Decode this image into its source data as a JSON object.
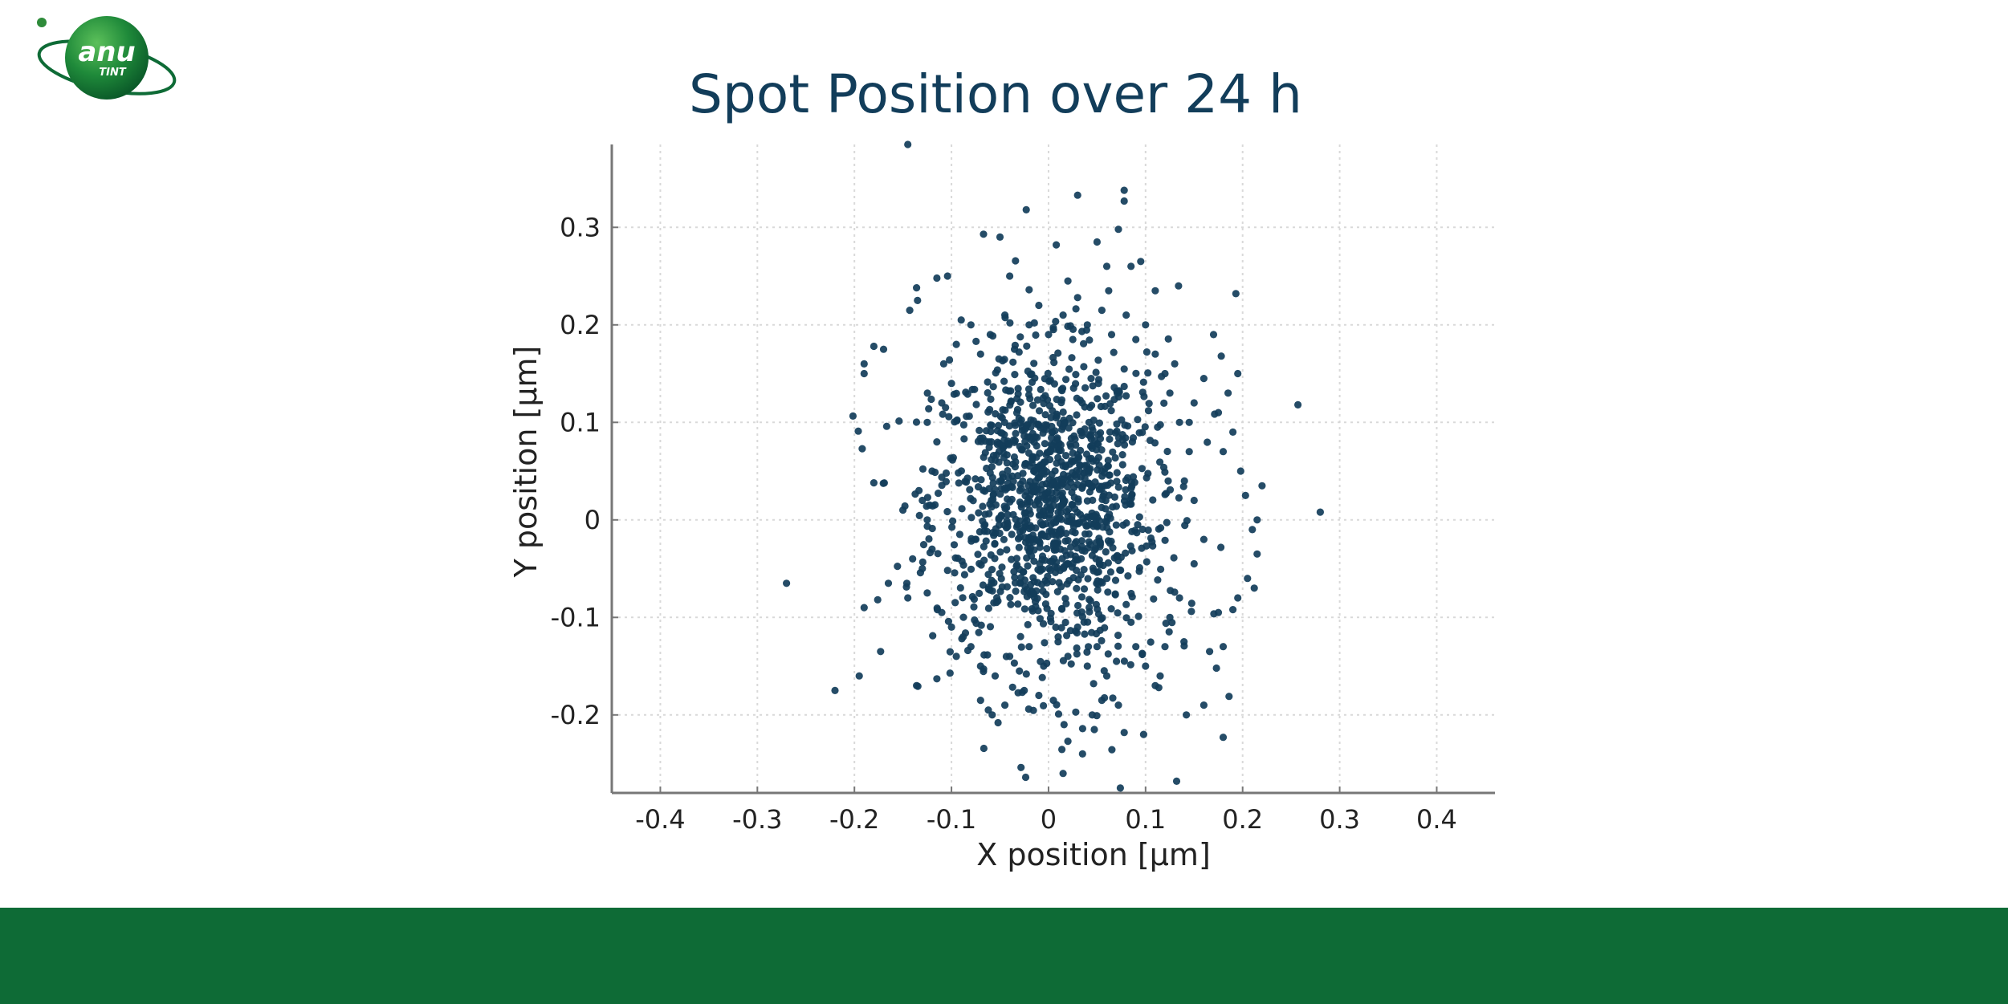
{
  "logo": {
    "line1": "anu",
    "line2": "TINT",
    "colors": {
      "sphere": "#1f8a3a",
      "orbit": "#0e6b36",
      "text": "#ffffff"
    }
  },
  "chart_data": {
    "type": "scatter",
    "title": "Spot Position over 24 h",
    "xlabel": "X position [μm]",
    "ylabel": "Y position [μm]",
    "xlim": [
      -0.45,
      0.46
    ],
    "ylim": [
      -0.28,
      0.385
    ],
    "xticks": [
      -0.4,
      -0.3,
      -0.2,
      -0.1,
      0,
      0.1,
      0.2,
      0.3,
      0.4
    ],
    "xtick_labels": [
      "-0.4",
      "-0.3",
      "-0.2",
      "-0.1",
      "0",
      "0.1",
      "0.2",
      "0.3",
      "0.4"
    ],
    "yticks": [
      -0.2,
      -0.1,
      0,
      0.1,
      0.2,
      0.3
    ],
    "ytick_labels": [
      "-0.2",
      "-0.1",
      "0",
      "0.1",
      "0.2",
      "0.3"
    ],
    "grid": true,
    "legend": "none",
    "colors": {
      "marker": "#123d5a",
      "title": "#123d5a",
      "axis": "#777777",
      "grid": "#d9d9d9"
    },
    "points": [
      [
        -0.145,
        0.385
      ],
      [
        -0.27,
        -0.065
      ],
      [
        -0.22,
        -0.175
      ],
      [
        0.28,
        0.008
      ],
      [
        0.257,
        0.118
      ],
      [
        0.03,
        0.333
      ],
      [
        0.078,
        0.338
      ],
      [
        0.078,
        0.327
      ],
      [
        -0.023,
        0.318
      ],
      [
        0.072,
        0.298
      ],
      [
        -0.05,
        0.29
      ],
      [
        -0.067,
        0.293
      ],
      [
        0.008,
        0.282
      ],
      [
        0.05,
        0.285
      ],
      [
        -0.104,
        0.25
      ],
      [
        -0.115,
        0.248
      ],
      [
        0.11,
        0.235
      ],
      [
        0.134,
        0.24
      ],
      [
        0.193,
        0.232
      ],
      [
        -0.136,
        0.238
      ],
      [
        -0.135,
        0.225
      ],
      [
        -0.143,
        0.215
      ],
      [
        -0.02,
        0.236
      ],
      [
        0.03,
        0.228
      ],
      [
        -0.19,
        0.15
      ],
      [
        -0.19,
        0.16
      ],
      [
        -0.17,
        0.175
      ],
      [
        -0.18,
        0.178
      ],
      [
        -0.196,
        0.091
      ],
      [
        -0.192,
        0.073
      ],
      [
        -0.18,
        0.038
      ],
      [
        -0.19,
        -0.09
      ],
      [
        -0.195,
        -0.16
      ],
      [
        -0.173,
        -0.135
      ],
      [
        -0.176,
        -0.082
      ],
      [
        -0.165,
        -0.065
      ],
      [
        -0.14,
        -0.04
      ],
      [
        -0.15,
        0.01
      ],
      [
        -0.146,
        -0.065
      ],
      [
        -0.145,
        -0.08
      ],
      [
        -0.136,
        -0.17
      ],
      [
        -0.115,
        -0.163
      ],
      [
        -0.088,
        -0.12
      ],
      [
        -0.07,
        -0.185
      ],
      [
        -0.062,
        -0.195
      ],
      [
        -0.058,
        -0.2
      ],
      [
        -0.052,
        -0.208
      ],
      [
        -0.045,
        -0.19
      ],
      [
        -0.025,
        -0.175
      ],
      [
        -0.01,
        -0.18
      ],
      [
        0.005,
        -0.185
      ],
      [
        0.016,
        -0.21
      ],
      [
        0.02,
        -0.227
      ],
      [
        0.015,
        -0.26
      ],
      [
        0.035,
        -0.24
      ],
      [
        0.045,
        -0.2
      ],
      [
        0.055,
        -0.185
      ],
      [
        0.072,
        -0.19
      ],
      [
        0.078,
        -0.218
      ],
      [
        0.098,
        -0.22
      ],
      [
        0.074,
        -0.275
      ],
      [
        0.132,
        -0.268
      ],
      [
        0.142,
        -0.2
      ],
      [
        0.16,
        -0.19
      ],
      [
        0.18,
        -0.223
      ],
      [
        0.186,
        -0.181
      ],
      [
        0.173,
        -0.152
      ],
      [
        0.166,
        -0.135
      ],
      [
        0.18,
        -0.13
      ],
      [
        0.175,
        -0.095
      ],
      [
        0.19,
        -0.092
      ],
      [
        0.195,
        -0.08
      ],
      [
        0.205,
        -0.06
      ],
      [
        0.212,
        -0.07
      ],
      [
        0.215,
        -0.035
      ],
      [
        0.21,
        -0.01
      ],
      [
        0.215,
        0.0
      ],
      [
        0.203,
        0.025
      ],
      [
        0.22,
        0.035
      ],
      [
        0.198,
        0.05
      ],
      [
        0.18,
        0.07
      ],
      [
        0.19,
        0.09
      ],
      [
        0.175,
        0.11
      ],
      [
        0.185,
        0.13
      ],
      [
        0.195,
        0.15
      ],
      [
        0.178,
        0.168
      ],
      [
        0.17,
        0.19
      ],
      [
        0.16,
        0.145
      ],
      [
        0.15,
        0.12
      ],
      [
        0.145,
        0.1
      ],
      [
        0.145,
        0.07
      ],
      [
        0.14,
        0.04
      ],
      [
        0.15,
        0.02
      ],
      [
        0.16,
        -0.02
      ],
      [
        0.15,
        -0.045
      ],
      [
        0.135,
        -0.08
      ],
      [
        0.125,
        -0.1
      ],
      [
        0.12,
        -0.13
      ],
      [
        0.115,
        -0.16
      ],
      [
        0.11,
        -0.17
      ],
      [
        0.1,
        -0.15
      ],
      [
        0.09,
        -0.13
      ],
      [
        0.085,
        -0.105
      ],
      [
        0.07,
        -0.145
      ],
      [
        0.06,
        -0.16
      ],
      [
        0.05,
        -0.13
      ],
      [
        0.04,
        -0.15
      ],
      [
        0.03,
        -0.11
      ],
      [
        0.02,
        -0.14
      ],
      [
        0.01,
        -0.12
      ],
      [
        -0.005,
        -0.15
      ],
      [
        -0.02,
        -0.13
      ],
      [
        -0.03,
        -0.155
      ],
      [
        -0.04,
        -0.14
      ],
      [
        -0.055,
        -0.16
      ],
      [
        -0.07,
        -0.15
      ],
      [
        -0.08,
        -0.13
      ],
      [
        -0.095,
        -0.14
      ],
      [
        -0.1,
        -0.11
      ],
      [
        -0.11,
        -0.095
      ],
      [
        -0.125,
        -0.075
      ],
      [
        -0.13,
        -0.05
      ],
      [
        -0.12,
        -0.03
      ],
      [
        -0.125,
        0.0
      ],
      [
        -0.13,
        0.02
      ],
      [
        -0.12,
        0.05
      ],
      [
        -0.115,
        0.08
      ],
      [
        -0.125,
        0.1
      ],
      [
        -0.11,
        0.12
      ],
      [
        -0.1,
        0.14
      ],
      [
        -0.108,
        0.16
      ],
      [
        -0.095,
        0.18
      ],
      [
        -0.08,
        0.2
      ],
      [
        -0.07,
        0.17
      ],
      [
        -0.06,
        0.19
      ],
      [
        -0.045,
        0.21
      ],
      [
        -0.035,
        0.175
      ],
      [
        -0.02,
        0.2
      ],
      [
        -0.01,
        0.22
      ],
      [
        0.0,
        0.19
      ],
      [
        0.015,
        0.21
      ],
      [
        0.025,
        0.185
      ],
      [
        0.04,
        0.2
      ],
      [
        0.055,
        0.215
      ],
      [
        0.065,
        0.19
      ],
      [
        0.08,
        0.21
      ],
      [
        0.09,
        0.185
      ],
      [
        0.1,
        0.2
      ],
      [
        0.11,
        0.17
      ],
      [
        0.12,
        0.15
      ],
      [
        0.13,
        0.16
      ],
      [
        0.125,
        0.13
      ],
      [
        0.135,
        0.1
      ],
      [
        0.085,
        0.26
      ],
      [
        0.095,
        0.265
      ],
      [
        0.06,
        0.26
      ],
      [
        0.02,
        0.245
      ],
      [
        -0.04,
        0.25
      ],
      [
        -0.09,
        0.205
      ],
      [
        0.062,
        0.235
      ]
    ],
    "clusters": [
      {
        "cx": -0.01,
        "cy": 0.02,
        "sx": 0.055,
        "sy": 0.075,
        "n": 900
      },
      {
        "cx": 0.04,
        "cy": 0.0,
        "sx": 0.05,
        "sy": 0.09,
        "n": 300
      }
    ]
  }
}
